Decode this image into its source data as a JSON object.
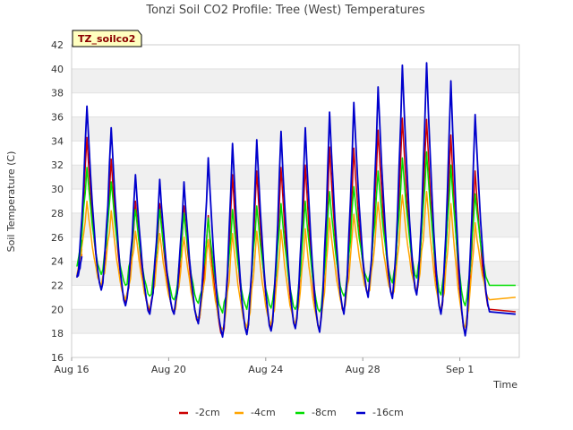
{
  "chart_data": {
    "type": "line",
    "title": "Tonzi Soil CO2 Profile: Tree (West) Temperatures",
    "xlabel": "Time",
    "ylabel": "Soil Temperature (C)",
    "badge": "TZ_soilco2",
    "ylim": [
      16,
      42
    ],
    "xlim": [
      0,
      18.45
    ],
    "y_ticks": [
      16,
      18,
      20,
      22,
      24,
      26,
      28,
      30,
      32,
      34,
      36,
      38,
      40,
      42
    ],
    "x_ticks": [
      {
        "label": "Aug 16",
        "day": 0
      },
      {
        "label": "Aug 20",
        "day": 4
      },
      {
        "label": "Aug 24",
        "day": 8
      },
      {
        "label": "Aug 28",
        "day": 12
      },
      {
        "label": "Sep 1",
        "day": 16
      }
    ],
    "x_unit": "days since Aug 16",
    "grid": "horizontal bands",
    "legend_position": "bottom",
    "series": [
      {
        "name": "-2cm",
        "color": "#cc0000",
        "start": 24.6,
        "mins": [
          22.8,
          21.8,
          20.5,
          19.8,
          19.6,
          18.9,
          17.8,
          18.1,
          18.4,
          18.5,
          18.2,
          19.7,
          21.2,
          21.0,
          21.4,
          19.7,
          18.0,
          20.0
        ],
        "maxes": [
          34.3,
          32.5,
          29.0,
          28.8,
          28.6,
          27.8,
          31.2,
          31.5,
          31.8,
          32.0,
          33.5,
          33.4,
          34.9,
          35.9,
          35.8,
          34.5,
          31.5
        ],
        "end": 19.8
      },
      {
        "name": "-4cm",
        "color": "#ffa500",
        "start": 25.0,
        "mins": [
          22.9,
          22.0,
          20.8,
          20.1,
          19.9,
          19.3,
          18.3,
          18.5,
          18.7,
          18.8,
          18.5,
          20.0,
          21.4,
          21.2,
          21.6,
          20.0,
          18.5,
          20.8
        ],
        "maxes": [
          29.0,
          28.2,
          26.5,
          26.3,
          26.0,
          25.8,
          26.3,
          26.5,
          26.6,
          26.7,
          27.6,
          27.9,
          28.9,
          29.5,
          29.8,
          28.8,
          27.2
        ],
        "end": 21.0
      },
      {
        "name": "-8cm",
        "color": "#00dd00",
        "start": 25.8,
        "mins": [
          23.6,
          22.9,
          22.0,
          21.1,
          20.8,
          20.5,
          19.7,
          20.0,
          20.1,
          20.0,
          19.8,
          21.1,
          22.3,
          22.2,
          22.6,
          21.2,
          20.3,
          22.0
        ],
        "maxes": [
          31.8,
          30.6,
          28.3,
          28.3,
          28.0,
          27.6,
          28.3,
          28.6,
          28.8,
          29.0,
          29.8,
          30.2,
          31.5,
          32.6,
          33.1,
          32.0,
          29.6
        ],
        "end": 22.0
      },
      {
        "name": "-16cm",
        "color": "#0000cc",
        "start": 24.4,
        "mins": [
          22.7,
          21.6,
          20.3,
          19.6,
          19.6,
          18.8,
          17.7,
          17.9,
          18.2,
          18.4,
          18.1,
          19.6,
          21.0,
          20.9,
          21.2,
          19.6,
          17.8,
          19.8
        ],
        "maxes": [
          36.9,
          35.1,
          31.2,
          30.8,
          30.6,
          32.6,
          33.8,
          34.1,
          34.8,
          35.1,
          36.4,
          37.2,
          38.5,
          40.3,
          40.5,
          39.0,
          36.2
        ],
        "end": 19.6
      }
    ]
  }
}
